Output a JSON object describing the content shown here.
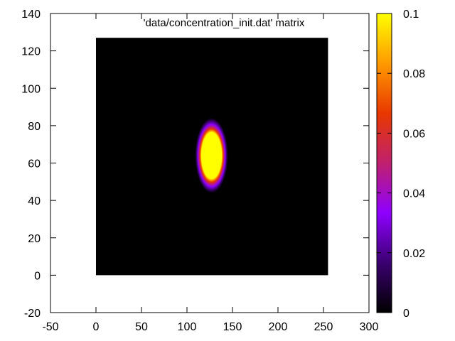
{
  "chart_data": {
    "type": "heatmap",
    "title": "'data/concentration_init.dat' matrix",
    "xlabel": "",
    "ylabel": "",
    "xlim": [
      -50,
      300
    ],
    "ylim": [
      -20,
      140
    ],
    "x_ticks": [
      "-50",
      "0",
      "50",
      "100",
      "150",
      "200",
      "250",
      "300"
    ],
    "y_ticks": [
      "-20",
      "0",
      "20",
      "40",
      "60",
      "80",
      "100",
      "120",
      "140"
    ],
    "colorbar": {
      "range": [
        0,
        0.1
      ],
      "ticks": [
        "0",
        "0.02",
        "0.04",
        "0.06",
        "0.08",
        "0.1"
      ],
      "palette": [
        "#000000",
        "#3b0070",
        "#8e00ff",
        "#c0206e",
        "#e83800",
        "#ff9a00",
        "#ffff00"
      ]
    },
    "matrix": {
      "x_range": [
        0,
        255
      ],
      "y_range": [
        0,
        127
      ],
      "background_value": 0,
      "blob": {
        "center": [
          127,
          64
        ],
        "extent_x": [
          109,
          145
        ],
        "extent_y": [
          44,
          84
        ],
        "peak_value": 0.1
      }
    },
    "grid": false,
    "legend": "none"
  }
}
